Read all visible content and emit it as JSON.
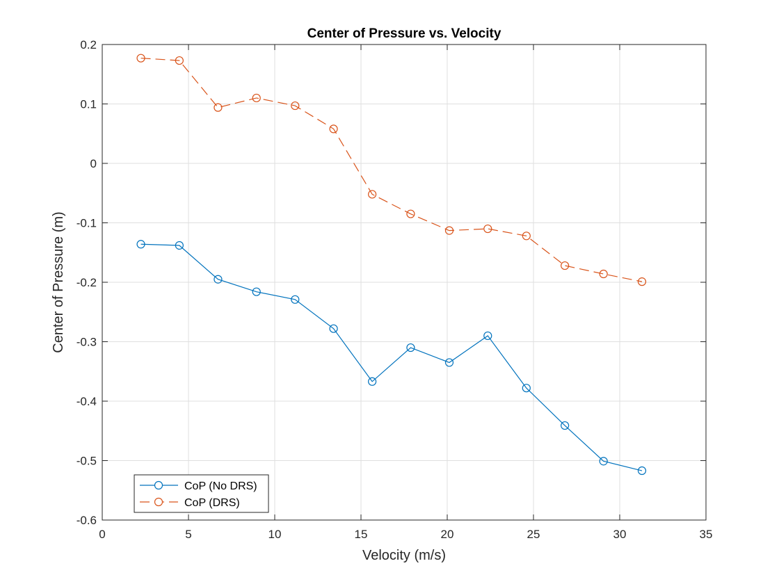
{
  "chart_data": {
    "type": "line",
    "title": "Center of Pressure vs. Velocity",
    "xlabel": "Velocity (m/s)",
    "ylabel": "Center of Pressure (m)",
    "xlim": [
      0,
      35
    ],
    "ylim": [
      -0.6,
      0.2
    ],
    "xticks": [
      0,
      5,
      10,
      15,
      20,
      25,
      30,
      35
    ],
    "yticks": [
      -0.6,
      -0.5,
      -0.4,
      -0.3,
      -0.2,
      -0.1,
      0,
      0.1,
      0.2
    ],
    "xtick_labels": [
      "0",
      "5",
      "10",
      "15",
      "20",
      "25",
      "30",
      "35"
    ],
    "ytick_labels": [
      "-0.6",
      "-0.5",
      "-0.4",
      "-0.3",
      "-0.2",
      "-0.1",
      "0",
      "0.1",
      "0.2"
    ],
    "grid": true,
    "legend_position": "bottom-left",
    "x": [
      2.24,
      4.47,
      6.71,
      8.94,
      11.18,
      13.41,
      15.65,
      17.88,
      20.12,
      22.35,
      24.59,
      26.82,
      29.06,
      31.29
    ],
    "series": [
      {
        "name": "CoP (No DRS)",
        "color": "#0072BD",
        "line_style": "solid",
        "marker": "circle",
        "values": [
          -0.136,
          -0.138,
          -0.195,
          -0.216,
          -0.229,
          -0.278,
          -0.367,
          -0.31,
          -0.335,
          -0.29,
          -0.378,
          -0.441,
          -0.501,
          -0.517
        ]
      },
      {
        "name": "CoP (DRS)",
        "color": "#D95319",
        "line_style": "dashed",
        "marker": "circle",
        "values": [
          0.177,
          0.173,
          0.094,
          0.11,
          0.097,
          0.058,
          -0.052,
          -0.085,
          -0.113,
          -0.11,
          -0.122,
          -0.172,
          -0.186,
          -0.199
        ]
      }
    ]
  }
}
